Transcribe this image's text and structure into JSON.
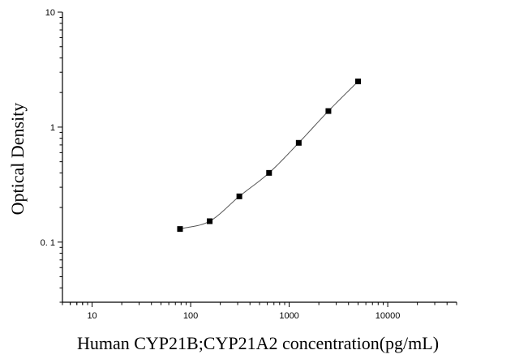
{
  "chart_data": {
    "type": "scatter",
    "title": "",
    "xlabel": "Human CYP21B;CYP21A2 concentration(pg/mL)",
    "ylabel": "Optical Density",
    "x_scale": "log",
    "y_scale": "log",
    "xlim": [
      5,
      50000
    ],
    "ylim": [
      0.03,
      10
    ],
    "x_ticks": [
      10,
      100,
      1000,
      10000
    ],
    "x_tick_labels": [
      "10",
      "100",
      "1000",
      "10000"
    ],
    "y_ticks": [
      0.1,
      1,
      10
    ],
    "y_tick_labels": [
      "0. 1",
      "1",
      "10"
    ],
    "grid": false,
    "series": [
      {
        "points": [
          {
            "x": 78,
            "y": 0.13
          },
          {
            "x": 156,
            "y": 0.152
          },
          {
            "x": 312,
            "y": 0.25
          },
          {
            "x": 625,
            "y": 0.4
          },
          {
            "x": 1250,
            "y": 0.73
          },
          {
            "x": 2500,
            "y": 1.38
          },
          {
            "x": 5000,
            "y": 2.5
          }
        ],
        "marker": "square",
        "color": "#000000"
      }
    ],
    "fit_curve": {
      "type": "four-parameter-logistic",
      "color": "#555555"
    }
  }
}
